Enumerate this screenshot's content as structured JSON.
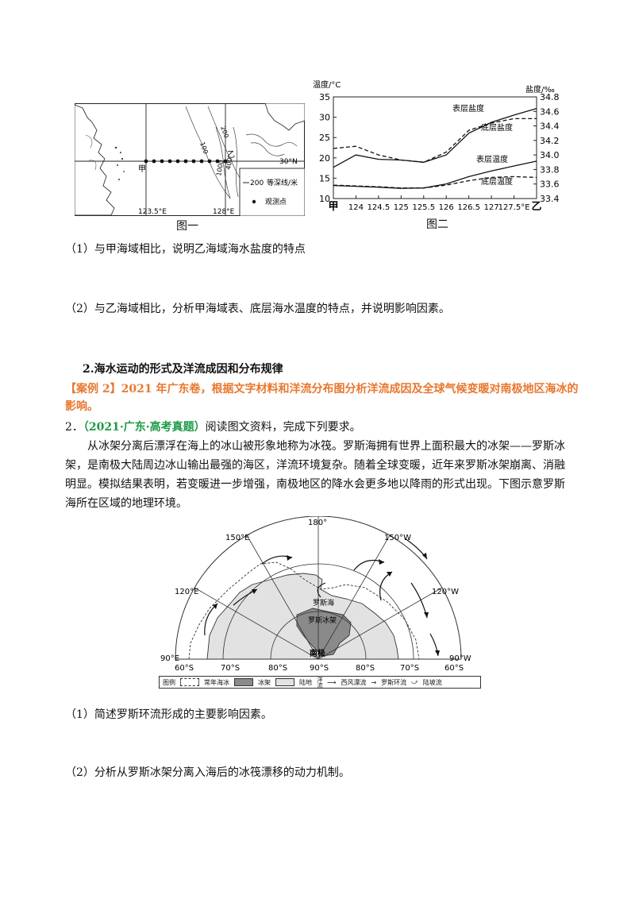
{
  "figure1": {
    "caption": "图一",
    "lat_label": "30°N",
    "lon_left": "123.5°E",
    "lon_right": "128°E",
    "point_jia": "甲",
    "point_yi": "乙",
    "contour_labels": [
      "100",
      "200",
      "1000",
      "400"
    ],
    "legend_isobath": "200",
    "legend_isobath_text": "等深线/米",
    "legend_point": "观测点"
  },
  "figure2": {
    "caption": "图二",
    "left_axis_title": "温度/°C",
    "right_axis_title": "盐度/‰",
    "series_labels": [
      "表层盐度",
      "底层盐度",
      "表层温度",
      "底层温度"
    ]
  },
  "chart_data": {
    "type": "line",
    "x_labels": [
      "甲",
      "124",
      "124.5",
      "125",
      "125.5",
      "126",
      "126.5",
      "127",
      "127.5°E",
      "乙"
    ],
    "x": [
      123.5,
      124,
      124.5,
      125,
      125.5,
      126,
      126.5,
      127,
      127.5,
      128
    ],
    "y_left_ticks": [
      10,
      15,
      20,
      25,
      30,
      35
    ],
    "y_right_ticks": [
      33.4,
      33.6,
      33.8,
      34.0,
      34.2,
      34.4,
      34.6,
      34.8
    ],
    "ylim_left": [
      10,
      35
    ],
    "ylim_right": [
      33.4,
      34.8
    ],
    "series": [
      {
        "name": "表层盐度",
        "axis": "right",
        "style": "solid",
        "values": [
          33.83,
          34.0,
          33.94,
          33.93,
          33.9,
          34.0,
          34.3,
          34.45,
          34.55,
          34.64
        ]
      },
      {
        "name": "底层盐度",
        "axis": "right",
        "style": "dashed",
        "values": [
          34.09,
          34.12,
          34.0,
          33.93,
          33.9,
          34.04,
          34.34,
          34.44,
          34.5,
          34.5
        ]
      },
      {
        "name": "表层温度",
        "axis": "left",
        "style": "solid",
        "values": [
          13.2,
          13.0,
          12.8,
          12.5,
          12.6,
          13.6,
          15.4,
          16.8,
          18.0,
          19.2
        ]
      },
      {
        "name": "底层温度",
        "axis": "left",
        "style": "dashed",
        "values": [
          13.3,
          13.1,
          12.9,
          12.6,
          12.6,
          13.3,
          14.4,
          15.2,
          15.4,
          15.2
        ]
      }
    ]
  },
  "questions1": {
    "q1": "（1）与甲海域相比，说明乙海域海水盐度的特点",
    "q2": "（2）与乙海域相比，分析甲海域表、底层海水温度的特点，并说明影响因素。"
  },
  "section_title": "2.海水运动的形式及洋流成因和分布规律",
  "case_text": "【案例 2】2021 年广东卷，根据文字材料和洋流分布图分析洋流成因及全球气候变暖对南极地区海冰的影响。",
  "problem2": {
    "number": "2．",
    "source": "（2021·广东·高考真题）",
    "instruction": "阅读图文资料，完成下列要求。",
    "paragraph": "从冰架分离后漂浮在海上的冰山被形象地称为冰筏。罗斯海拥有世界上面积最大的冰架——罗斯冰架，是南极大陆周边冰山输出最强的海区，洋流环境复杂。随着全球变暖，近年来罗斯冰架崩离、消融明显。模拟结果表明，若变暖进一步增强，南极地区的降水会更多地以降雨的形式出现。下图示意罗斯海所在区域的地理环境。"
  },
  "map": {
    "top_label": "180°",
    "lon_labels": [
      "150°E",
      "150°W",
      "120°E",
      "120°W",
      "90°E",
      "90°W"
    ],
    "lat_labels": [
      "60°S",
      "70°S",
      "80°S",
      "90°S",
      "80°S",
      "70°S",
      "60°S"
    ],
    "pole_label": "南极",
    "sea_label": "罗斯海",
    "shelf_label": "罗斯冰架",
    "legend_title": "图例",
    "legend_items": [
      "常年海冰",
      "冰架",
      "陆地",
      "西风漂流",
      "罗斯环流",
      "陆坡流"
    ],
    "legend_current": "洋流"
  },
  "questions2": {
    "q1": "（1）简述罗斯环流形成的主要影响因素。",
    "q2": "（2）分析从罗斯冰架分离入海后的冰筏漂移的动力机制。"
  }
}
